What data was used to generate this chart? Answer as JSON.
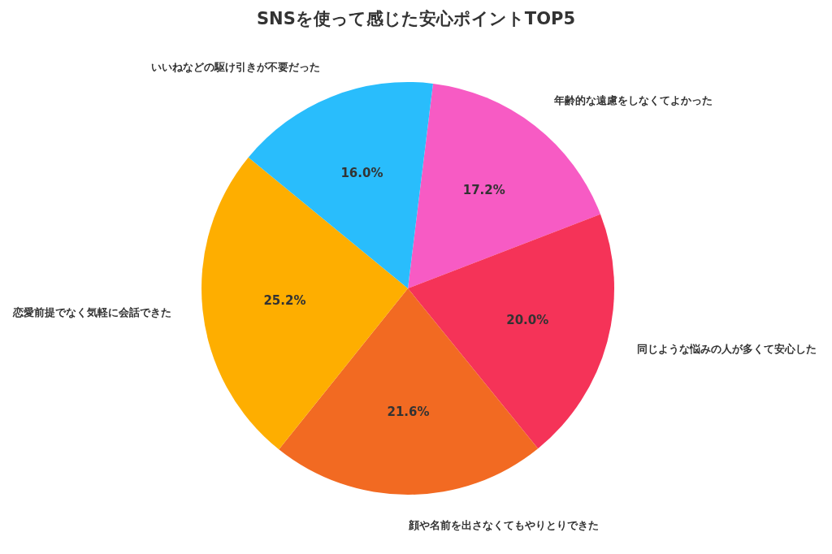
{
  "chart_data": {
    "type": "pie",
    "title": "SNSを使って感じた安心ポイントTOP5",
    "categories": [
      "年齢的な遠慮をしなくてよかった",
      "同じような悩みの人が多くて安心した",
      "顔や名前を出さなくてもやりとりできた",
      "恋愛前提でなく気軽に会話できた",
      "いいねなどの駆け引きが不要だった"
    ],
    "values": [
      17.2,
      20.0,
      21.6,
      25.2,
      16.0
    ],
    "colors": [
      "#f75bc4",
      "#f53358",
      "#f26a22",
      "#feae00",
      "#29bdfc"
    ],
    "value_labels": [
      "17.2%",
      "20.0%",
      "21.6%",
      "25.2%",
      "16.0%"
    ]
  }
}
